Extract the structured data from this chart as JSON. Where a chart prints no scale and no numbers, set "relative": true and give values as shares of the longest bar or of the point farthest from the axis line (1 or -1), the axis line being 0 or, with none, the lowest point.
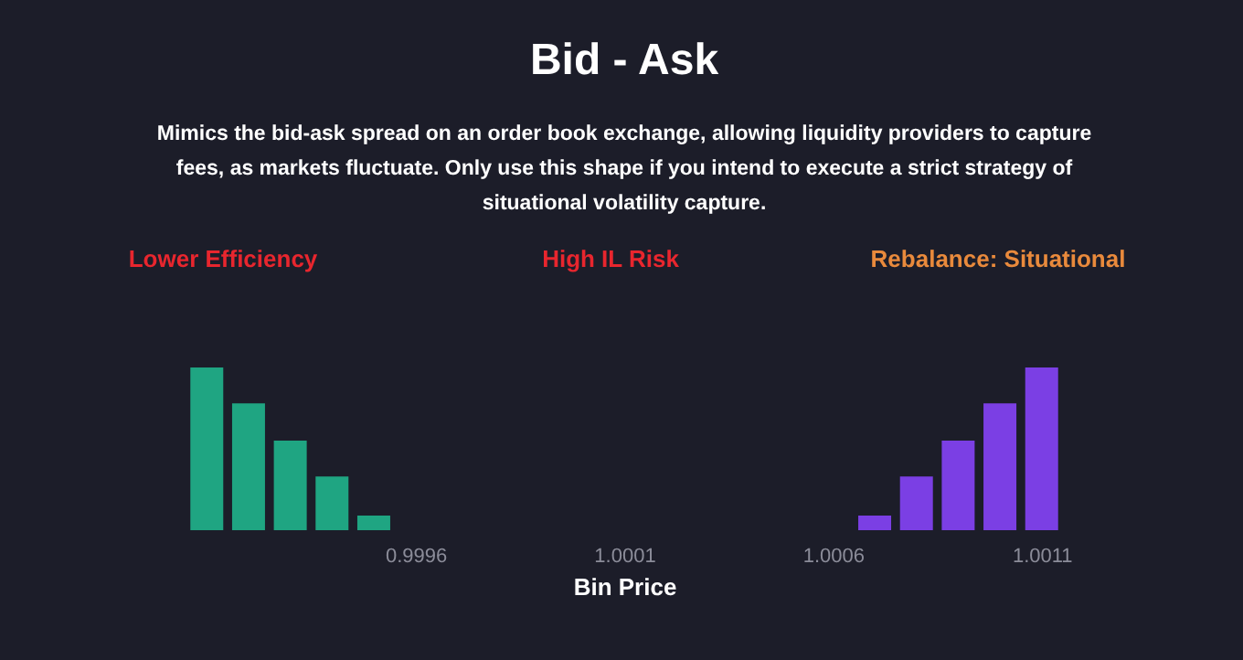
{
  "chart_data": {
    "type": "bar",
    "title": "Bid - Ask",
    "subtitle": "Mimics the bid-ask spread on an order book exchange, allowing liquidity providers to capture fees, as markets fluctuate. Only use this shape if you intend to execute a strict strategy of situational volatility capture.",
    "annotations": [
      "Lower Efficiency",
      "High IL Risk",
      "Rebalance: Situational"
    ],
    "xlabel": "Bin Price",
    "relative": true,
    "series": [
      {
        "color": "#1fa582",
        "x": [
          0.9991,
          0.9992,
          0.9993,
          0.9994,
          0.9995
        ],
        "values": [
          1,
          0.78,
          0.55,
          0.33,
          0.09
        ]
      },
      {
        "color": "#7b3fe4",
        "x": [
          1.0007,
          1.0008,
          1.0009,
          1.001,
          1.0011
        ],
        "values": [
          0.09,
          0.33,
          0.55,
          0.78,
          1
        ]
      }
    ],
    "xlim": [
      0.99906,
      1.00114
    ],
    "xticks": [
      0.9996,
      1.0001,
      1.0006,
      1.0011
    ],
    "tick_labels": "x"
  }
}
